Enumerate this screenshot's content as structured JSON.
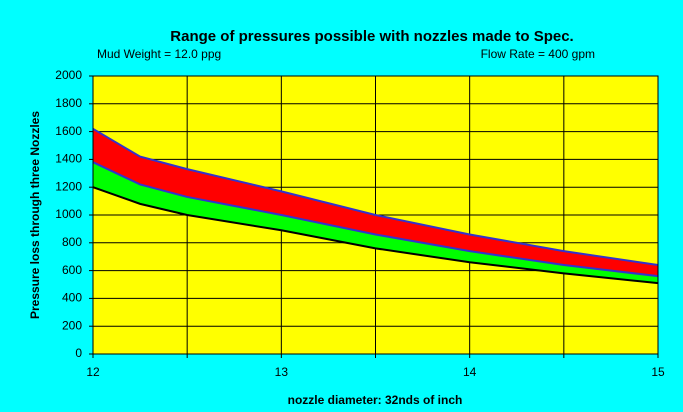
{
  "chart_data": {
    "type": "band",
    "title": "Range of pressures possible with nozzles made to Spec.",
    "annotations": [
      "Mud Weight = 12.0 ppg",
      "Flow Rate = 400 gpm"
    ],
    "x_label": "nozzle diameter: 32nds of inch",
    "y_label": "Pressure loss through three Nozzles",
    "x": [
      12,
      12.25,
      12.5,
      13,
      13.5,
      14,
      14.5,
      15
    ],
    "series": [
      {
        "line_color": "#3333cc",
        "fill_color": "#ff0000",
        "values": [
          1620,
          1420,
          1330,
          1170,
          1000,
          860,
          740,
          640
        ]
      },
      {
        "line_color": "#3333cc",
        "fill_color": "#00ff00",
        "values": [
          1380,
          1220,
          1130,
          1000,
          860,
          740,
          640,
          560
        ]
      },
      {
        "line_color": "#000000",
        "values": [
          1200,
          1080,
          1000,
          890,
          760,
          660,
          580,
          510
        ]
      }
    ],
    "xlim": [
      12,
      15
    ],
    "xticks": [
      12,
      13,
      14,
      15
    ],
    "xminor_ticks": [
      12.5,
      13.5,
      14.5
    ],
    "ylim": [
      0,
      2000
    ],
    "yticks": [
      0,
      200,
      400,
      600,
      800,
      1000,
      1200,
      1400,
      1600,
      1800,
      2000
    ],
    "grid": true,
    "background": "#00ffff",
    "plot_background": "#ffff00"
  }
}
